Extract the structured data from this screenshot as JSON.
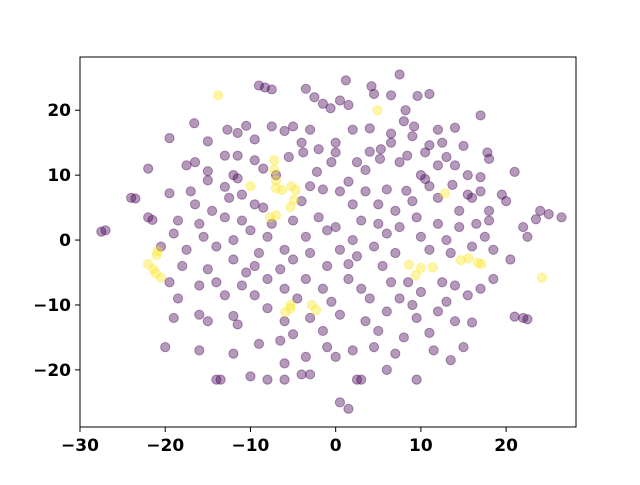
{
  "chart_data": {
    "type": "scatter",
    "title": "",
    "xlabel": "",
    "ylabel": "",
    "xlim": [
      -30,
      28.2
    ],
    "ylim": [
      -28.8,
      28.2
    ],
    "x_ticks": [
      "−30",
      "−20",
      "−10",
      "0",
      "10",
      "20"
    ],
    "x_tick_values": [
      -30,
      -20,
      -10,
      0,
      10,
      20
    ],
    "y_ticks": [
      "−20",
      "−10",
      "0",
      "10",
      "20"
    ],
    "y_tick_values": [
      -20,
      -10,
      0,
      10,
      20
    ],
    "grid": false,
    "marker_alpha": 0.4,
    "series": [
      {
        "color": "#440154",
        "points": [
          [
            -9,
            23.8
          ],
          [
            -8.3,
            23.5
          ],
          [
            -7.5,
            23.2
          ],
          [
            -3.5,
            23.3
          ],
          [
            1.2,
            24.6
          ],
          [
            4.5,
            22.5
          ],
          [
            4.2,
            23.7
          ],
          [
            -2.5,
            22
          ],
          [
            6.5,
            22.3
          ],
          [
            7.5,
            25.5
          ],
          [
            9.6,
            22.2
          ],
          [
            11,
            22.5
          ],
          [
            -0.6,
            20.3
          ],
          [
            0.5,
            21.5
          ],
          [
            1.5,
            20.8
          ],
          [
            -1.5,
            21
          ],
          [
            8.2,
            20
          ],
          [
            -16.6,
            18
          ],
          [
            -12.7,
            17
          ],
          [
            -7.5,
            17.5
          ],
          [
            -5,
            17.5
          ],
          [
            -3,
            17
          ],
          [
            2,
            17
          ],
          [
            4,
            17.2
          ],
          [
            8,
            18.3
          ],
          [
            9.2,
            17.5
          ],
          [
            12,
            17
          ],
          [
            14,
            17.3
          ],
          [
            17,
            19.2
          ],
          [
            -10.5,
            17.6
          ],
          [
            -11.5,
            16.5
          ],
          [
            -6,
            16.8
          ],
          [
            6.5,
            16.4
          ],
          [
            -19.5,
            15.7
          ],
          [
            -15,
            15.2
          ],
          [
            -9.5,
            15.5
          ],
          [
            -4,
            15
          ],
          [
            -2,
            14
          ],
          [
            0,
            15
          ],
          [
            5.3,
            14
          ],
          [
            6.5,
            15
          ],
          [
            9,
            16
          ],
          [
            12.5,
            15
          ],
          [
            15,
            14.5
          ],
          [
            11,
            14.6
          ],
          [
            -22,
            11
          ],
          [
            -17.5,
            11.5
          ],
          [
            -16.5,
            12
          ],
          [
            -13,
            13
          ],
          [
            -11.5,
            13
          ],
          [
            -9.5,
            12.3
          ],
          [
            -8.5,
            11
          ],
          [
            -12,
            10
          ],
          [
            -15,
            10.6
          ],
          [
            -5.5,
            12.8
          ],
          [
            -3.8,
            13.5
          ],
          [
            0,
            13.5
          ],
          [
            -0.5,
            12
          ],
          [
            2.5,
            12
          ],
          [
            4,
            13.6
          ],
          [
            5.2,
            12.5
          ],
          [
            7.5,
            12
          ],
          [
            8.4,
            13
          ],
          [
            10.5,
            13.5
          ],
          [
            12,
            11.5
          ],
          [
            13,
            12.8
          ],
          [
            17.8,
            13.5
          ],
          [
            18,
            12.5
          ],
          [
            14,
            11.5
          ],
          [
            17,
            9.7
          ],
          [
            21,
            10.5
          ],
          [
            19.5,
            7
          ],
          [
            15.5,
            10
          ],
          [
            10,
            10
          ],
          [
            3.5,
            10.8
          ],
          [
            -2.2,
            10.5
          ],
          [
            -7,
            10
          ],
          [
            -19.5,
            7.2
          ],
          [
            -17,
            7.5
          ],
          [
            -15,
            9.2
          ],
          [
            -13,
            8.2
          ],
          [
            -11.5,
            9.5
          ],
          [
            -11,
            7
          ],
          [
            -12.5,
            6.5
          ],
          [
            -9.5,
            5.5
          ],
          [
            -3,
            8.3
          ],
          [
            -1.5,
            7.8
          ],
          [
            0.5,
            7.5
          ],
          [
            1.5,
            9
          ],
          [
            3.5,
            7.5
          ],
          [
            6,
            7.8
          ],
          [
            8.3,
            7.6
          ],
          [
            10.5,
            9.4
          ],
          [
            11,
            8.3
          ],
          [
            13.7,
            8.5
          ],
          [
            15.5,
            7
          ],
          [
            17,
            7.5
          ],
          [
            16,
            6.5
          ],
          [
            20,
            6
          ],
          [
            -24,
            6.5
          ],
          [
            -23.5,
            6.4
          ],
          [
            -16.5,
            5.5
          ],
          [
            -14.5,
            4.5
          ],
          [
            -8.5,
            5
          ],
          [
            -4,
            6
          ],
          [
            2,
            5.5
          ],
          [
            5,
            5.5
          ],
          [
            7,
            4.5
          ],
          [
            9,
            6
          ],
          [
            12,
            6.5
          ],
          [
            14.5,
            4.5
          ],
          [
            18,
            4.5
          ],
          [
            -22,
            3.5
          ],
          [
            -21.5,
            3.1
          ],
          [
            -18.5,
            3
          ],
          [
            -16,
            2.5
          ],
          [
            -13,
            3.5
          ],
          [
            -11,
            3
          ],
          [
            -10,
            1.5
          ],
          [
            -7.5,
            2.5
          ],
          [
            -5,
            3
          ],
          [
            -2,
            3.5
          ],
          [
            0,
            2
          ],
          [
            3,
            3
          ],
          [
            5,
            2.5
          ],
          [
            7.5,
            2
          ],
          [
            9.5,
            3.5
          ],
          [
            12,
            2.5
          ],
          [
            14.5,
            2
          ],
          [
            16.5,
            2.5
          ],
          [
            18,
            3
          ],
          [
            22,
            2
          ],
          [
            24,
            4.5
          ],
          [
            25,
            4
          ],
          [
            26.5,
            3.5
          ],
          [
            23.5,
            3.2
          ],
          [
            -19,
            1
          ],
          [
            -15.5,
            0.5
          ],
          [
            -12,
            0
          ],
          [
            -8,
            0.5
          ],
          [
            -3.5,
            0.5
          ],
          [
            -1,
            1.5
          ],
          [
            2,
            0
          ],
          [
            6,
            1
          ],
          [
            10,
            0.5
          ],
          [
            13,
            0
          ],
          [
            17.5,
            0.5
          ],
          [
            22.5,
            0.5
          ],
          [
            -27.5,
            1.3
          ],
          [
            -27,
            1.5
          ],
          [
            -20.5,
            -1
          ],
          [
            -17.5,
            -1.5
          ],
          [
            -14,
            -1
          ],
          [
            -12,
            -3
          ],
          [
            -9,
            -2
          ],
          [
            -6,
            -1.5
          ],
          [
            -3,
            -2
          ],
          [
            0.5,
            -1.5
          ],
          [
            2.5,
            -2.5
          ],
          [
            4.5,
            -1
          ],
          [
            7,
            -2
          ],
          [
            11,
            -1.5
          ],
          [
            13.5,
            -2
          ],
          [
            16,
            -1
          ],
          [
            18.5,
            -1.5
          ],
          [
            20.5,
            -3
          ],
          [
            -18,
            -4
          ],
          [
            -15,
            -4.5
          ],
          [
            -9.5,
            -4
          ],
          [
            -6.5,
            -4.5
          ],
          [
            -1,
            -4
          ],
          [
            1.5,
            -3.7
          ],
          [
            5.5,
            -4
          ],
          [
            -5,
            -3
          ],
          [
            -10.5,
            -5
          ],
          [
            -19.5,
            -6.5
          ],
          [
            -16,
            -7
          ],
          [
            -14,
            -6.5
          ],
          [
            -11,
            -7
          ],
          [
            -8,
            -6
          ],
          [
            -6,
            -7.5
          ],
          [
            -3.5,
            -6
          ],
          [
            -1.5,
            -7.5
          ],
          [
            1.5,
            -6
          ],
          [
            3,
            -7.5
          ],
          [
            6.5,
            -6.5
          ],
          [
            8.5,
            -6.5
          ],
          [
            10,
            -8
          ],
          [
            12.5,
            -6.5
          ],
          [
            14,
            -7
          ],
          [
            17,
            -7.5
          ],
          [
            18.5,
            -6
          ],
          [
            -13,
            -8.5
          ],
          [
            -9.5,
            -8.5
          ],
          [
            -4.5,
            -9
          ],
          [
            -0.5,
            -9.5
          ],
          [
            4,
            -9
          ],
          [
            7.5,
            -9
          ],
          [
            9,
            -10
          ],
          [
            13,
            -9.5
          ],
          [
            15.5,
            -8.5
          ],
          [
            -18.5,
            -9
          ],
          [
            -19,
            -12
          ],
          [
            -16,
            -11.5
          ],
          [
            -15,
            -12.5
          ],
          [
            -12,
            -11.7
          ],
          [
            -8,
            -10.5
          ],
          [
            -6,
            -12.5
          ],
          [
            -3,
            -12
          ],
          [
            0.5,
            -11.5
          ],
          [
            3.5,
            -12.5
          ],
          [
            6,
            -11
          ],
          [
            9.5,
            -12
          ],
          [
            12,
            -11
          ],
          [
            14,
            -12.5
          ],
          [
            16,
            -12.7
          ],
          [
            22,
            -12
          ],
          [
            21,
            -11.8
          ],
          [
            22.5,
            -12.2
          ],
          [
            -11.5,
            -13
          ],
          [
            -1.5,
            -14
          ],
          [
            5,
            -14
          ],
          [
            8,
            -15
          ],
          [
            11,
            -14.3
          ],
          [
            -5,
            -14.5
          ],
          [
            -20,
            -16.5
          ],
          [
            -16,
            -17
          ],
          [
            -12,
            -17.5
          ],
          [
            -9,
            -16
          ],
          [
            -6.5,
            -15.5
          ],
          [
            -3.5,
            -18
          ],
          [
            -1,
            -16.5
          ],
          [
            2,
            -17
          ],
          [
            4.5,
            -16.5
          ],
          [
            7,
            -17.5
          ],
          [
            11.5,
            -17
          ],
          [
            15,
            -16.5
          ],
          [
            -6,
            -19
          ],
          [
            0,
            -18
          ],
          [
            6,
            -20
          ],
          [
            13.5,
            -18.5
          ],
          [
            -14,
            -21.5
          ],
          [
            -13.5,
            -21.5
          ],
          [
            -10,
            -21
          ],
          [
            -8,
            -21.5
          ],
          [
            -6,
            -21.5
          ],
          [
            -4,
            -20.7
          ],
          [
            -3,
            -20.7
          ],
          [
            2.5,
            -21.5
          ],
          [
            3,
            -21.5
          ],
          [
            9.5,
            -21.5
          ],
          [
            0.5,
            -25
          ],
          [
            1.5,
            -26
          ]
        ]
      },
      {
        "color": "#fde725",
        "points": [
          [
            -13.8,
            22.3
          ],
          [
            4.9,
            20.0
          ],
          [
            -7.2,
            12.3
          ],
          [
            -7.2,
            10.8
          ],
          [
            -7.0,
            9.2
          ],
          [
            -7.0,
            8.0
          ],
          [
            -6.3,
            7.7
          ],
          [
            -5.2,
            8.3
          ],
          [
            -4.7,
            7.7
          ],
          [
            -4.9,
            6.2
          ],
          [
            -5.3,
            5.1
          ],
          [
            -7.0,
            3.8
          ],
          [
            -7.7,
            3.5
          ],
          [
            -10.0,
            8.3
          ],
          [
            12.8,
            7.2
          ],
          [
            -20.9,
            -1.7
          ],
          [
            -21.0,
            -2.3
          ],
          [
            -22.0,
            -3.7
          ],
          [
            -21.4,
            -4.5
          ],
          [
            -21.1,
            -5.1
          ],
          [
            -20.5,
            -5.8
          ],
          [
            -5.3,
            -10.0
          ],
          [
            -5.3,
            -10.5
          ],
          [
            -5.9,
            -11.1
          ],
          [
            -2.8,
            -10.0
          ],
          [
            -2.3,
            -10.8
          ],
          [
            8.6,
            -3.8
          ],
          [
            9.4,
            -5.4
          ],
          [
            10.0,
            -4.3
          ],
          [
            11.4,
            -4.2
          ],
          [
            14.7,
            -3.1
          ],
          [
            15.6,
            -2.8
          ],
          [
            16.7,
            -3.5
          ],
          [
            17.1,
            -3.7
          ],
          [
            24.2,
            -5.8
          ]
        ]
      }
    ]
  }
}
